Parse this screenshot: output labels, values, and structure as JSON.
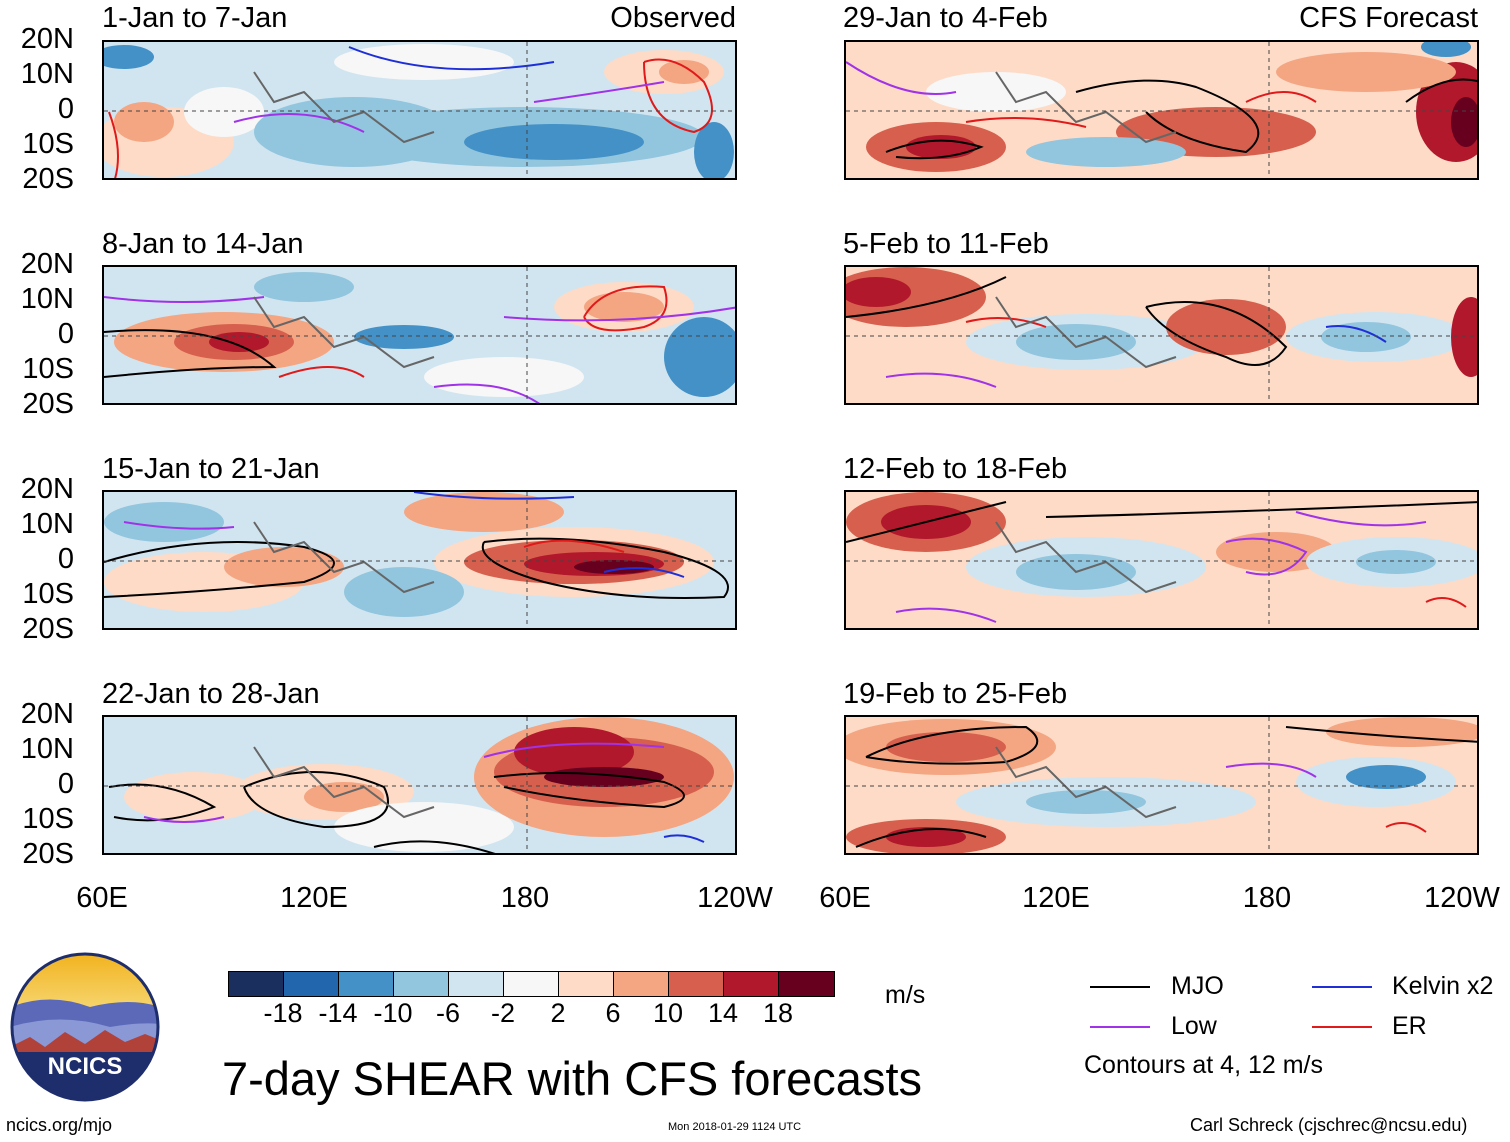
{
  "panels_left": [
    {
      "title": "1-Jan to 7-Jan",
      "label": "Observed"
    },
    {
      "title": "8-Jan to 14-Jan",
      "label": ""
    },
    {
      "title": "15-Jan to 21-Jan",
      "label": ""
    },
    {
      "title": "22-Jan to 28-Jan",
      "label": ""
    }
  ],
  "panels_right": [
    {
      "title": "29-Jan to 4-Feb",
      "label": "CFS Forecast"
    },
    {
      "title": "5-Feb to 11-Feb",
      "label": ""
    },
    {
      "title": "12-Feb to 18-Feb",
      "label": ""
    },
    {
      "title": "19-Feb to 25-Feb",
      "label": ""
    }
  ],
  "lat_labels": [
    "20N",
    "10N",
    "0",
    "10S",
    "20S"
  ],
  "lon_labels": [
    "60E",
    "120E",
    "180",
    "120W"
  ],
  "colorbar": {
    "ticks": [
      "-18",
      "-14",
      "-10",
      "-6",
      "-2",
      "2",
      "6",
      "10",
      "14",
      "18"
    ],
    "colors": [
      "#1a2f5e",
      "#2266ad",
      "#4391c6",
      "#92c5de",
      "#d1e5f0",
      "#f7f7f7",
      "#fddbc7",
      "#f4a582",
      "#d6604d",
      "#b2182b",
      "#67001f"
    ],
    "units": "m/s"
  },
  "legend": {
    "items": [
      {
        "label": "MJO",
        "color": "#000000"
      },
      {
        "label": "Kelvin x2",
        "color": "#1f2fd8"
      },
      {
        "label": "Low",
        "color": "#a032e8"
      },
      {
        "label": "ER",
        "color": "#e01a1a"
      }
    ],
    "note": "Contours at 4, 12 m/s"
  },
  "title": "7-day SHEAR with CFS forecasts",
  "logo_text": "NCICS",
  "footer": {
    "url": "ncics.org/mjo",
    "timestamp": "Mon 2018-01-29 1124 UTC",
    "credit": "Carl Schreck (cjschrec@ncsu.edu)"
  }
}
